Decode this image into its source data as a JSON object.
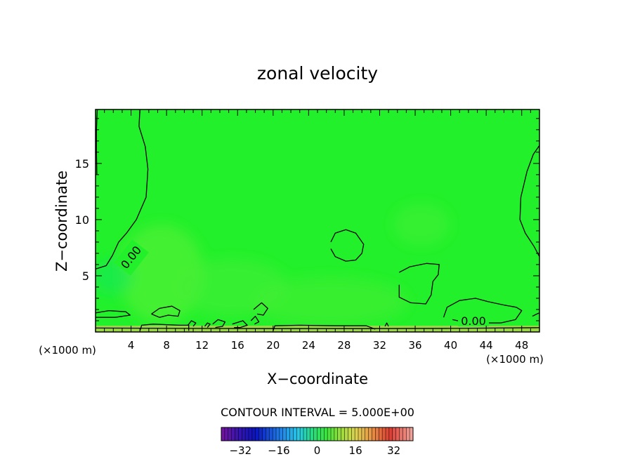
{
  "chart_data": {
    "type": "heatmap",
    "title": "zonal velocity",
    "xlabel": "X−coordinate",
    "ylabel": "Z−coordinate",
    "x_unit_left": "(×1000 m)",
    "x_unit_right": "(×1000 m)",
    "xlim": [
      0,
      50
    ],
    "ylim": [
      0,
      19.8
    ],
    "x_ticks": [
      4,
      8,
      12,
      16,
      20,
      24,
      28,
      32,
      36,
      40,
      44,
      48
    ],
    "y_ticks": [
      5,
      10,
      15
    ],
    "contour_interval_label": "CONTOUR INTERVAL = 5.000E+00",
    "contour_label": "0.00",
    "colorbar": {
      "min": -40,
      "max": 40,
      "ticks": [
        -32,
        -16,
        0,
        16,
        32
      ],
      "tick_labels": [
        "−32",
        "−16",
        "0",
        "16",
        "32"
      ]
    },
    "field_colors": {
      "background": "#22f02a",
      "weak_positive": "#4ef034",
      "weak_negative": "#18e85a",
      "surface": "#9ad64a"
    },
    "zero_contours": [
      {
        "name": "left-upper",
        "points": [
          [
            0.2,
            19.8
          ],
          [
            0.1,
            18
          ],
          [
            0.1,
            16
          ],
          [
            0.15,
            14
          ]
        ]
      },
      {
        "name": "left-tongue",
        "points": [
          [
            5,
            19.8
          ],
          [
            4.9,
            18.3
          ],
          [
            5.6,
            16.5
          ],
          [
            5.9,
            14.5
          ],
          [
            5.7,
            12
          ],
          [
            4.6,
            10
          ],
          [
            3.5,
            8.8
          ],
          [
            2.6,
            8
          ],
          [
            1.9,
            6.8
          ],
          [
            1.2,
            5.9
          ],
          [
            0,
            5.6
          ]
        ]
      },
      {
        "name": "left-bottom",
        "points": [
          [
            0,
            1.3
          ],
          [
            2.2,
            1.3
          ],
          [
            3.9,
            1.5
          ],
          [
            3.4,
            1.8
          ],
          [
            1.5,
            1.9
          ],
          [
            0,
            1.7
          ]
        ]
      },
      {
        "name": "blob-8",
        "points": [
          [
            6.3,
            1.6
          ],
          [
            7.2,
            2.1
          ],
          [
            8.6,
            2.3
          ],
          [
            9.5,
            1.9
          ],
          [
            9.3,
            1.4
          ],
          [
            8.2,
            1.5
          ],
          [
            7.2,
            1.3
          ],
          [
            6.3,
            1.6
          ]
        ]
      },
      {
        "name": "bottom-strip",
        "points": [
          [
            5,
            0.1
          ],
          [
            5.2,
            0.6
          ],
          [
            6.5,
            0.7
          ],
          [
            9.5,
            0.6
          ],
          [
            10.5,
            0.6
          ],
          [
            10.5,
            0.1
          ]
        ]
      },
      {
        "name": "small-12",
        "points": [
          [
            10.4,
            0.6
          ],
          [
            10.8,
            1.0
          ],
          [
            11.3,
            0.8
          ],
          [
            11,
            0.5
          ]
        ]
      },
      {
        "name": "small-12b",
        "points": [
          [
            12.3,
            0.5
          ],
          [
            12.6,
            0.8
          ],
          [
            12.9,
            0.7
          ],
          [
            12.6,
            0.4
          ]
        ]
      },
      {
        "name": "small-14",
        "points": [
          [
            13.2,
            0.7
          ],
          [
            13.8,
            1.1
          ],
          [
            14.6,
            0.9
          ],
          [
            14.3,
            0.5
          ],
          [
            13.5,
            0.4
          ]
        ]
      },
      {
        "name": "small-16",
        "points": [
          [
            15.4,
            0.7
          ],
          [
            16.6,
            1.0
          ],
          [
            17.1,
            0.6
          ],
          [
            16.3,
            0.4
          ],
          [
            15.6,
            0.4
          ]
        ]
      },
      {
        "name": "small-18a",
        "points": [
          [
            17.5,
            1.0
          ],
          [
            18,
            1.4
          ],
          [
            18.4,
            0.9
          ],
          [
            17.9,
            0.7
          ]
        ]
      },
      {
        "name": "small-18b",
        "points": [
          [
            17.8,
            2.0
          ],
          [
            18.7,
            2.6
          ],
          [
            19.4,
            2.1
          ],
          [
            18.9,
            1.5
          ],
          [
            18.2,
            1.6
          ]
        ]
      },
      {
        "name": "mid-bottom",
        "points": [
          [
            20,
            0.1
          ],
          [
            20.2,
            0.55
          ],
          [
            23,
            0.6
          ],
          [
            27,
            0.55
          ],
          [
            30.5,
            0.55
          ],
          [
            31.5,
            0.25
          ]
        ]
      },
      {
        "name": "small-33",
        "points": [
          [
            32.6,
            0.5
          ],
          [
            32.8,
            0.8
          ],
          [
            33.0,
            0.5
          ]
        ]
      },
      {
        "name": "blob-28",
        "points": [
          [
            26.5,
            8
          ],
          [
            27,
            8.8
          ],
          [
            28.2,
            9.1
          ],
          [
            29.3,
            8.8
          ],
          [
            30.2,
            7.8
          ],
          [
            30.0,
            7.0
          ],
          [
            29.3,
            6.4
          ],
          [
            28.2,
            6.3
          ],
          [
            27,
            6.7
          ],
          [
            26.5,
            7.4
          ]
        ]
      },
      {
        "name": "blob-36",
        "points": [
          [
            34.2,
            5.3
          ],
          [
            35.4,
            5.8
          ],
          [
            37.3,
            6.1
          ],
          [
            38.7,
            6.0
          ],
          [
            38.6,
            5.1
          ],
          [
            38.0,
            4.5
          ],
          [
            37.8,
            3.3
          ],
          [
            37.2,
            2.5
          ],
          [
            35.5,
            2.6
          ],
          [
            34.2,
            3.1
          ],
          [
            34.2,
            4.2
          ]
        ]
      },
      {
        "name": "blob-42",
        "points": [
          [
            39.2,
            1.3
          ],
          [
            39.6,
            2.2
          ],
          [
            41,
            2.8
          ],
          [
            42.8,
            3.0
          ],
          [
            44.2,
            2.7
          ],
          [
            46,
            2.4
          ],
          [
            47.4,
            2.2
          ],
          [
            48,
            1.9
          ],
          [
            47.3,
            1.1
          ],
          [
            45.6,
            0.8
          ],
          [
            43.2,
            0.8
          ],
          [
            40.8,
            1.0
          ],
          [
            40.2,
            1.1
          ]
        ]
      },
      {
        "name": "right-lobe",
        "points": [
          [
            50,
            16.6
          ],
          [
            49.3,
            15.8
          ],
          [
            48.6,
            14.3
          ],
          [
            47.9,
            12
          ],
          [
            47.8,
            10
          ],
          [
            48.4,
            8.8
          ],
          [
            49.4,
            7.6
          ],
          [
            50,
            6.7
          ]
        ]
      },
      {
        "name": "right-bottom",
        "points": [
          [
            49.2,
            1.4
          ],
          [
            49.7,
            1.6
          ],
          [
            50,
            1.7
          ]
        ]
      },
      {
        "name": "surface-line",
        "points": [
          [
            0,
            0.35
          ],
          [
            10,
            0.32
          ],
          [
            20,
            0.3
          ],
          [
            30,
            0.3
          ],
          [
            40,
            0.32
          ],
          [
            50,
            0.38
          ]
        ]
      }
    ]
  }
}
